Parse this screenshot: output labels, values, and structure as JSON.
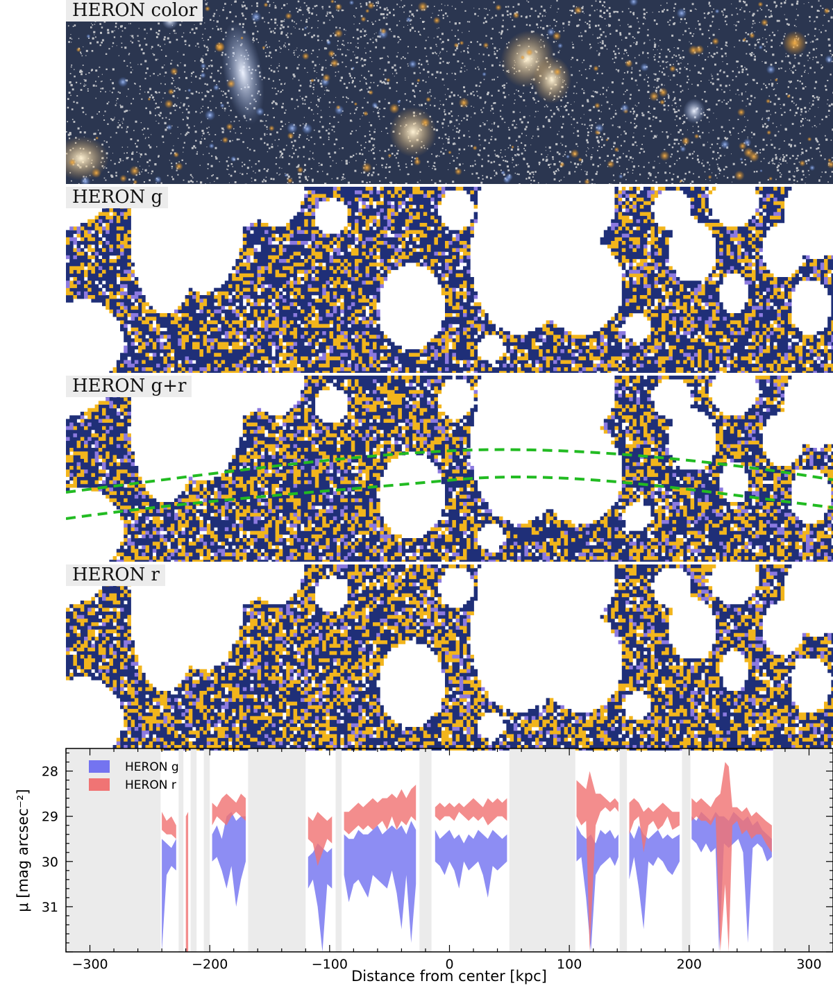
{
  "panels": [
    {
      "id": "color",
      "label": "HERON color"
    },
    {
      "id": "g",
      "label": "HERON g"
    },
    {
      "id": "gr",
      "label": "HERON g+r"
    },
    {
      "id": "r",
      "label": "HERON r"
    }
  ],
  "colors": {
    "navy": "#1f2f78",
    "gold": "#f2b51c",
    "lilac": "#8c7ae0",
    "overlay_green": "#22bb22",
    "g_band": "#7474f0",
    "r_band": "#f07474",
    "masked": "#ebebeb"
  },
  "chart_data": {
    "type": "area",
    "xlabel": "Distance from center [kpc]",
    "ylabel": "μ [mag arcsec⁻²]",
    "xlim": [
      -320,
      320
    ],
    "ylim": [
      32.0,
      27.5
    ],
    "y_inverted": true,
    "xticks": [
      -300,
      -200,
      -100,
      0,
      100,
      200,
      300
    ],
    "yticks": [
      28,
      29,
      30,
      31
    ],
    "legend_position": "top-left",
    "masked_regions": [
      [
        -320,
        -241
      ],
      [
        -226,
        -222
      ],
      [
        -216,
        -211
      ],
      [
        -205,
        -200
      ],
      [
        -168,
        -120
      ],
      [
        -95,
        -90
      ],
      [
        -25,
        -15
      ],
      [
        50,
        105
      ],
      [
        142,
        148
      ],
      [
        194,
        201
      ],
      [
        270,
        320
      ]
    ],
    "series": [
      {
        "name": "HERON g",
        "color": "#7474f0",
        "segments": [
          [
            [
              -240,
              29.5,
              32.0
            ],
            [
              -236,
              29.6,
              30.3
            ],
            [
              -232,
              29.7,
              30.1
            ],
            [
              -228,
              29.5,
              30.2
            ]
          ],
          [
            [
              -198,
              29.4,
              30.0
            ],
            [
              -194,
              29.2,
              29.9
            ],
            [
              -190,
              29.5,
              30.2
            ],
            [
              -186,
              29.0,
              30.6
            ],
            [
              -182,
              28.9,
              30.1
            ],
            [
              -178,
              29.1,
              31.0
            ],
            [
              -174,
              29.0,
              30.4
            ],
            [
              -170,
              29.0,
              30.0
            ]
          ],
          [
            [
              -118,
              29.9,
              30.6
            ],
            [
              -114,
              29.8,
              30.4
            ],
            [
              -110,
              29.6,
              31.0
            ],
            [
              -106,
              29.7,
              32.0
            ],
            [
              -102,
              29.8,
              30.5
            ],
            [
              -98,
              29.7,
              30.6
            ]
          ],
          [
            [
              -88,
              29.4,
              30.3
            ],
            [
              -84,
              29.5,
              30.9
            ],
            [
              -80,
              29.5,
              30.5
            ],
            [
              -76,
              29.3,
              30.4
            ],
            [
              -72,
              29.4,
              30.6
            ],
            [
              -68,
              29.4,
              30.8
            ],
            [
              -64,
              29.3,
              30.3
            ],
            [
              -60,
              29.2,
              30.4
            ],
            [
              -56,
              29.4,
              30.5
            ],
            [
              -52,
              29.3,
              30.6
            ],
            [
              -48,
              29.2,
              30.2
            ],
            [
              -44,
              29.3,
              30.7
            ],
            [
              -40,
              29.2,
              31.5
            ],
            [
              -36,
              29.4,
              30.3
            ],
            [
              -32,
              29.1,
              31.8
            ],
            [
              -28,
              29.3,
              30.5
            ]
          ],
          [
            [
              -12,
              29.3,
              30.0
            ],
            [
              -8,
              29.5,
              30.1
            ],
            [
              -4,
              29.4,
              30.3
            ],
            [
              0,
              29.3,
              30.0
            ],
            [
              4,
              29.5,
              30.2
            ],
            [
              8,
              29.4,
              30.6
            ],
            [
              12,
              29.6,
              30.0
            ],
            [
              16,
              29.4,
              30.2
            ],
            [
              20,
              29.5,
              30.1
            ],
            [
              24,
              29.3,
              30.0
            ],
            [
              28,
              29.4,
              30.3
            ],
            [
              32,
              29.5,
              30.8
            ],
            [
              36,
              29.3,
              30.1
            ],
            [
              40,
              29.4,
              30.2
            ],
            [
              44,
              29.5,
              30.1
            ],
            [
              48,
              29.4,
              30.0
            ]
          ],
          [
            [
              106,
              29.2,
              30.0
            ],
            [
              110,
              29.4,
              29.9
            ],
            [
              114,
              29.5,
              30.8
            ],
            [
              118,
              29.4,
              32.0
            ],
            [
              122,
              29.6,
              30.3
            ],
            [
              126,
              29.3,
              30.1
            ],
            [
              130,
              29.4,
              30.0
            ],
            [
              134,
              29.3,
              29.9
            ],
            [
              138,
              29.5,
              30.1
            ],
            [
              141,
              29.4,
              29.9
            ]
          ],
          [
            [
              150,
              29.3,
              30.4
            ],
            [
              154,
              29.5,
              29.9
            ],
            [
              158,
              29.2,
              30.6
            ],
            [
              162,
              29.4,
              31.5
            ],
            [
              166,
              29.5,
              30.0
            ],
            [
              170,
              29.4,
              30.1
            ],
            [
              174,
              29.3,
              29.9
            ],
            [
              178,
              29.5,
              30.0
            ],
            [
              182,
              29.4,
              30.2
            ],
            [
              186,
              29.5,
              30.3
            ],
            [
              192,
              29.4,
              30.0
            ]
          ],
          [
            [
              202,
              29.0,
              29.5
            ],
            [
              206,
              29.1,
              29.6
            ],
            [
              210,
              28.9,
              29.8
            ],
            [
              214,
              29.0,
              29.6
            ],
            [
              218,
              29.1,
              29.8
            ],
            [
              222,
              28.9,
              29.7
            ],
            [
              225,
              29.0,
              32.0
            ],
            [
              229,
              29.0,
              29.6
            ],
            [
              233,
              29.1,
              29.7
            ],
            [
              237,
              28.9,
              29.6
            ],
            [
              241,
              29.0,
              29.5
            ],
            [
              245,
              29.1,
              29.8
            ],
            [
              249,
              29.0,
              31.8
            ],
            [
              253,
              29.2,
              29.7
            ],
            [
              257,
              29.1,
              29.6
            ],
            [
              261,
              29.3,
              29.7
            ],
            [
              265,
              29.4,
              30.0
            ],
            [
              269,
              29.5,
              29.9
            ]
          ]
        ]
      },
      {
        "name": "HERON r",
        "color": "#f07474",
        "segments": [
          [
            [
              -240,
              28.9,
              29.3
            ],
            [
              -236,
              29.1,
              29.4
            ],
            [
              -232,
              29.0,
              29.4
            ],
            [
              -228,
              29.2,
              29.5
            ]
          ],
          [
            [
              -220,
              29.0,
              32.0
            ],
            [
              -218,
              28.9,
              32.0
            ]
          ],
          [
            [
              -198,
              28.7,
              29.2
            ],
            [
              -194,
              28.8,
              29.0
            ],
            [
              -190,
              28.6,
              29.1
            ],
            [
              -186,
              28.5,
              29.2
            ],
            [
              -182,
              28.6,
              29.0
            ],
            [
              -178,
              28.7,
              28.9
            ],
            [
              -174,
              28.5,
              29.0
            ],
            [
              -170,
              28.6,
              29.1
            ]
          ],
          [
            [
              -118,
              29.0,
              29.5
            ],
            [
              -114,
              29.1,
              29.6
            ],
            [
              -110,
              28.9,
              30.1
            ],
            [
              -106,
              29.0,
              29.8
            ],
            [
              -102,
              29.1,
              29.5
            ],
            [
              -98,
              29.0,
              29.6
            ]
          ],
          [
            [
              -88,
              28.9,
              29.3
            ],
            [
              -84,
              28.9,
              29.4
            ],
            [
              -80,
              28.8,
              29.3
            ],
            [
              -76,
              28.7,
              29.2
            ],
            [
              -72,
              28.8,
              29.3
            ],
            [
              -68,
              28.7,
              29.2
            ],
            [
              -64,
              28.6,
              29.3
            ],
            [
              -60,
              28.7,
              29.2
            ],
            [
              -56,
              28.6,
              29.1
            ],
            [
              -52,
              28.6,
              29.3
            ],
            [
              -48,
              28.5,
              29.0
            ],
            [
              -44,
              28.6,
              29.3
            ],
            [
              -40,
              28.4,
              29.1
            ],
            [
              -36,
              28.6,
              29.2
            ],
            [
              -32,
              28.4,
              29.0
            ],
            [
              -28,
              28.3,
              29.1
            ]
          ],
          [
            [
              -12,
              28.8,
              29.0
            ],
            [
              -8,
              28.7,
              29.1
            ],
            [
              -4,
              28.8,
              29.0
            ],
            [
              0,
              28.7,
              29.0
            ],
            [
              4,
              28.8,
              29.1
            ],
            [
              8,
              28.7,
              28.9
            ],
            [
              12,
              28.8,
              29.0
            ],
            [
              16,
              28.7,
              29.1
            ],
            [
              20,
              28.6,
              29.0
            ],
            [
              24,
              28.7,
              29.1
            ],
            [
              28,
              28.8,
              29.0
            ],
            [
              32,
              28.6,
              29.2
            ],
            [
              36,
              28.7,
              29.1
            ],
            [
              40,
              28.6,
              29.0
            ],
            [
              44,
              28.7,
              29.0
            ],
            [
              48,
              28.6,
              29.1
            ]
          ],
          [
            [
              106,
              28.2,
              29.0
            ],
            [
              110,
              28.3,
              29.2
            ],
            [
              114,
              28.4,
              29.1
            ],
            [
              117,
              28.0,
              32.0
            ],
            [
              122,
              28.5,
              29.2
            ],
            [
              126,
              28.5,
              28.9
            ],
            [
              130,
              28.6,
              28.8
            ],
            [
              134,
              28.7,
              28.9
            ],
            [
              138,
              28.6,
              28.8
            ],
            [
              141,
              28.7,
              28.9
            ]
          ],
          [
            [
              150,
              28.7,
              29.4
            ],
            [
              154,
              28.6,
              29.1
            ],
            [
              158,
              28.7,
              29.0
            ],
            [
              162,
              28.9,
              29.8
            ],
            [
              166,
              28.8,
              29.2
            ],
            [
              170,
              28.9,
              29.1
            ],
            [
              174,
              28.8,
              29.3
            ],
            [
              178,
              28.7,
              29.2
            ],
            [
              182,
              28.8,
              29.0
            ],
            [
              186,
              28.9,
              29.3
            ],
            [
              192,
              28.9,
              29.2
            ]
          ],
          [
            [
              202,
              28.6,
              29.1
            ],
            [
              206,
              28.7,
              29.0
            ],
            [
              210,
              28.6,
              29.1
            ],
            [
              214,
              28.7,
              29.1
            ],
            [
              218,
              28.8,
              29.2
            ],
            [
              222,
              28.6,
              29.0
            ],
            [
              226,
              28.5,
              32.0
            ],
            [
              230,
              27.8,
              30.5
            ],
            [
              233,
              27.9,
              32.0
            ],
            [
              236,
              28.8,
              29.2
            ],
            [
              240,
              28.8,
              29.1
            ],
            [
              244,
              28.9,
              29.4
            ],
            [
              248,
              28.8,
              29.3
            ],
            [
              252,
              29.0,
              29.5
            ],
            [
              256,
              28.9,
              29.4
            ],
            [
              260,
              29.0,
              29.4
            ],
            [
              264,
              29.1,
              29.6
            ],
            [
              269,
              29.2,
              29.8
            ]
          ]
        ]
      }
    ]
  }
}
